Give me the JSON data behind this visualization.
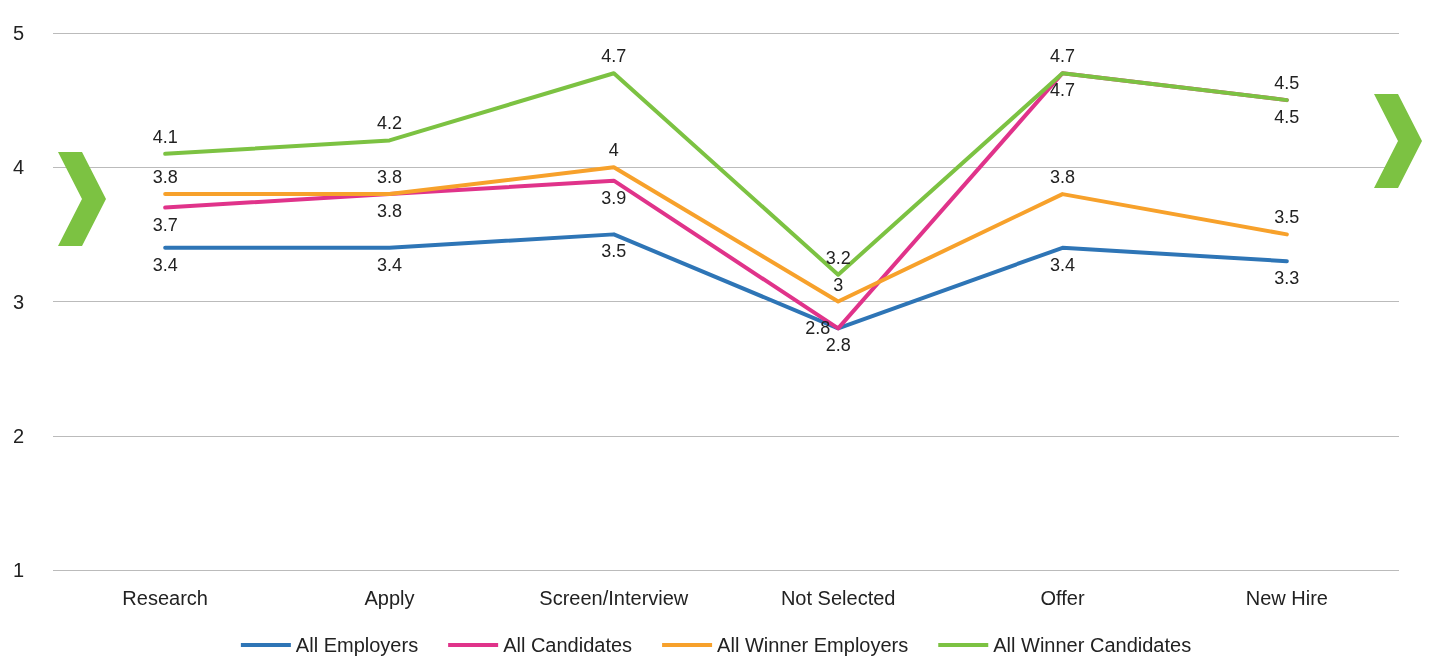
{
  "chart_data": {
    "type": "line",
    "categories": [
      "Research",
      "Apply",
      "Screen/Interview",
      "Not Selected",
      "Offer",
      "New Hire"
    ],
    "series": [
      {
        "name": "All Employers",
        "color": "#2e75b6",
        "values": [
          3.4,
          3.4,
          3.5,
          2.8,
          3.4,
          3.3
        ]
      },
      {
        "name": "All Candidates",
        "color": "#e0338a",
        "values": [
          3.7,
          3.8,
          3.9,
          2.8,
          4.7,
          4.5
        ]
      },
      {
        "name": "All Winner Employers",
        "color": "#f7a12b",
        "values": [
          3.8,
          3.8,
          4,
          3,
          3.8,
          3.5
        ]
      },
      {
        "name": "All Winner Candidates",
        "color": "#7cc242",
        "values": [
          4.1,
          4.2,
          4.7,
          3.2,
          4.7,
          4.5
        ]
      }
    ],
    "ylim": [
      1,
      5
    ],
    "yticks": [
      1,
      2,
      3,
      4,
      5
    ],
    "grid": "y",
    "legend": "bottom",
    "marker": "none",
    "line_style": "solid",
    "data_labels": true
  }
}
